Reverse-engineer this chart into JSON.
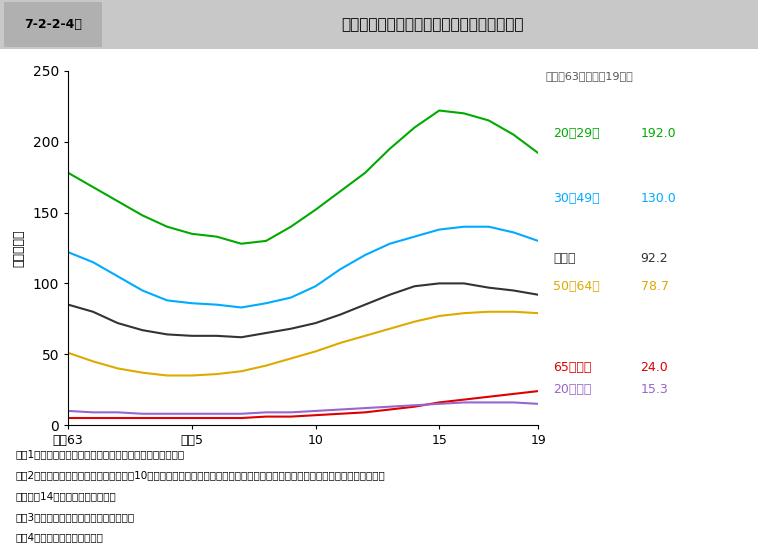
{
  "title": "7-2-2-4図　一般刑法犯起訴人員の年齢層別人口比の推移",
  "header_left": "7-2-2-4図",
  "header_right": "一般刑法犯起訴人員の年齢層別人口比の推移",
  "subtitle": "（昭和63年〜平成19年）",
  "ylabel": "（人口比）",
  "ylim": [
    0,
    250
  ],
  "yticks": [
    0,
    50,
    100,
    150,
    200,
    250
  ],
  "x_years": [
    1988,
    1989,
    1990,
    1991,
    1992,
    1993,
    1994,
    1995,
    1996,
    1997,
    1998,
    1999,
    2000,
    2001,
    2002,
    2003,
    2004,
    2005,
    2006,
    2007
  ],
  "x_tick_positions": [
    1988,
    1993,
    1998,
    2003,
    2007
  ],
  "x_tick_labels": [
    "昭和63",
    "平成5",
    "10",
    "15",
    "19"
  ],
  "series": {
    "20〜29歳": {
      "color": "#00aa00",
      "label": "20〜29歳",
      "value_label": "192.0",
      "data": [
        178,
        168,
        158,
        148,
        140,
        135,
        133,
        128,
        130,
        140,
        152,
        165,
        178,
        195,
        210,
        222,
        220,
        215,
        205,
        192
      ]
    },
    "30〜49歳": {
      "color": "#00aaff",
      "label": "30〜49歳",
      "value_label": "130.0",
      "data": [
        122,
        115,
        105,
        95,
        88,
        86,
        85,
        83,
        86,
        90,
        98,
        110,
        120,
        128,
        133,
        138,
        140,
        140,
        136,
        130
      ]
    },
    "総数": {
      "color": "#333333",
      "label": "総　数",
      "value_label": "92.2",
      "data": [
        85,
        80,
        72,
        67,
        64,
        63,
        63,
        62,
        65,
        68,
        72,
        78,
        85,
        92,
        98,
        100,
        100,
        97,
        95,
        92
      ]
    },
    "50〜64歳": {
      "color": "#ddaa00",
      "label": "50〜64歳",
      "value_label": "78.7",
      "data": [
        51,
        45,
        40,
        37,
        35,
        35,
        36,
        38,
        42,
        47,
        52,
        58,
        63,
        68,
        73,
        77,
        79,
        80,
        80,
        79
      ]
    },
    "65歳以上": {
      "color": "#dd0000",
      "label": "65歳以上",
      "value_label": "24.0",
      "data": [
        5,
        5,
        5,
        5,
        5,
        5,
        5,
        5,
        6,
        6,
        7,
        8,
        9,
        11,
        13,
        16,
        18,
        20,
        22,
        24
      ]
    },
    "20歳未満": {
      "color": "#9966cc",
      "label": "20歳未満",
      "value_label": "15.3",
      "data": [
        10,
        9,
        9,
        8,
        8,
        8,
        8,
        8,
        9,
        9,
        10,
        11,
        12,
        13,
        14,
        15,
        16,
        16,
        16,
        15
      ]
    }
  },
  "notes": [
    "注　1　検察統計年報及び総務省統計局の人口資料による。",
    "　　2　「人口比」とは，当該年齢層人口10万人当たりの起訴人員の比率をいう。ただし，総数の人口比の算出に用いた人口は，",
    "　　　　14歳以上の人口である。",
    "　　3　被疑者が法人である事件を除く。",
    "　　4　犯行時の年齢による。"
  ],
  "background_color": "#ffffff",
  "plot_bg_color": "#ffffff"
}
